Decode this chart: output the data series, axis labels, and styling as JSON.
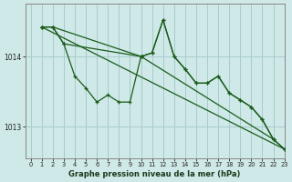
{
  "background_color": "#cfe8e8",
  "grid_color": "#a8cccc",
  "line_color": "#1a5c1a",
  "title": "Graphe pression niveau de la mer (hPa)",
  "xlabel": "Graphe pression niveau de la mer (hPa)",
  "ylim": [
    1012.55,
    1014.75
  ],
  "xlim": [
    -0.5,
    23
  ],
  "yticks": [
    1013.0,
    1014.0
  ],
  "xticks": [
    0,
    1,
    2,
    3,
    4,
    5,
    6,
    7,
    8,
    9,
    10,
    11,
    12,
    13,
    14,
    15,
    16,
    17,
    18,
    19,
    20,
    21,
    22,
    23
  ],
  "series": [
    {
      "x": [
        1,
        2,
        3,
        4,
        5,
        6,
        7,
        8,
        9,
        10,
        11,
        12,
        13,
        14,
        15,
        16,
        17,
        18,
        19,
        20,
        21,
        22
      ],
      "y": [
        1014.42,
        1014.42,
        1014.18,
        1013.72,
        1013.55,
        1013.35,
        1013.45,
        1013.35,
        1013.35,
        1014.0,
        1014.05,
        1014.52,
        1014.0,
        1013.82,
        1013.62,
        1013.62,
        1013.72,
        1013.48,
        1013.38,
        1013.28,
        1013.1,
        1012.82
      ]
    },
    {
      "x": [
        1,
        2,
        10,
        11,
        12,
        13,
        14,
        15,
        16,
        17,
        18,
        19,
        20,
        21,
        22,
        23
      ],
      "y": [
        1014.42,
        1014.42,
        1014.0,
        1014.05,
        1014.52,
        1014.0,
        1013.82,
        1013.62,
        1013.62,
        1013.72,
        1013.48,
        1013.38,
        1013.28,
        1013.1,
        1012.82,
        1012.68
      ]
    },
    {
      "x": [
        1,
        2,
        3,
        10,
        22,
        23
      ],
      "y": [
        1014.42,
        1014.42,
        1014.18,
        1014.0,
        1012.82,
        1012.68
      ]
    },
    {
      "x": [
        1,
        23
      ],
      "y": [
        1014.42,
        1012.68
      ]
    }
  ]
}
